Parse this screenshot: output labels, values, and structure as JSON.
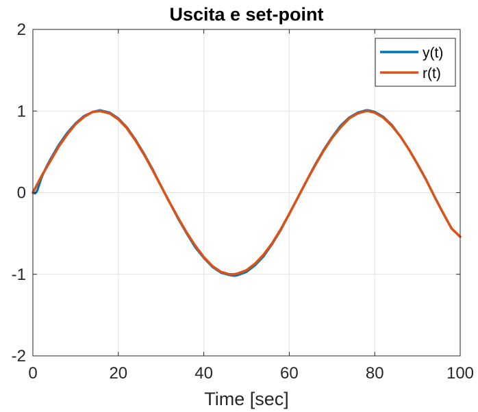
{
  "chart_data": {
    "type": "line",
    "title": "Uscita e set-point",
    "xlabel": "Time [sec]",
    "ylabel": "",
    "xlim": [
      0,
      100
    ],
    "ylim": [
      -2,
      2
    ],
    "xticks": [
      0,
      20,
      40,
      60,
      80,
      100
    ],
    "yticks": [
      -2,
      -1,
      0,
      1,
      2
    ],
    "xtick_labels": [
      "0",
      "20",
      "40",
      "60",
      "80",
      "100"
    ],
    "ytick_labels": [
      "-2",
      "-1",
      "0",
      "1",
      "2"
    ],
    "grid": true,
    "legend_position": "top-right",
    "series": [
      {
        "name": "y(t)",
        "color": "#0072bd",
        "x": [
          0,
          0.5,
          1,
          1.5,
          2,
          3,
          4,
          6,
          8,
          10,
          12,
          14,
          15.7,
          18,
          20,
          22,
          24,
          26,
          28,
          30,
          32,
          34,
          36,
          38,
          40,
          42,
          44,
          46,
          47.1,
          48,
          50,
          52,
          54,
          56,
          58,
          60,
          62,
          64,
          66,
          68,
          70,
          72,
          74,
          76,
          78,
          78.5,
          80,
          82,
          84,
          86,
          88,
          90,
          92,
          94,
          96,
          98,
          100
        ],
        "values": [
          0,
          -0.01,
          0.02,
          0.1,
          0.18,
          0.3,
          0.4,
          0.58,
          0.73,
          0.85,
          0.94,
          0.99,
          1.01,
          0.98,
          0.91,
          0.8,
          0.65,
          0.48,
          0.29,
          0.08,
          -0.12,
          -0.32,
          -0.5,
          -0.67,
          -0.8,
          -0.91,
          -0.98,
          -1.01,
          -1.02,
          -1.01,
          -0.97,
          -0.89,
          -0.78,
          -0.63,
          -0.46,
          -0.26,
          -0.06,
          0.14,
          0.34,
          0.52,
          0.68,
          0.82,
          0.92,
          0.98,
          1.01,
          1.01,
          0.99,
          0.93,
          0.83,
          0.69,
          0.53,
          0.35,
          0.16,
          -0.05,
          -0.25,
          -0.44,
          -0.54
        ]
      },
      {
        "name": "r(t)",
        "color": "#d95319",
        "x": [
          0,
          1,
          2,
          3,
          4,
          6,
          8,
          10,
          12,
          14,
          15.7,
          18,
          20,
          22,
          24,
          26,
          28,
          30,
          32,
          34,
          36,
          38,
          40,
          42,
          44,
          46,
          47.1,
          48,
          50,
          52,
          54,
          56,
          58,
          60,
          62,
          64,
          66,
          68,
          70,
          72,
          74,
          76,
          78,
          78.5,
          80,
          82,
          84,
          86,
          88,
          90,
          92,
          94,
          96,
          98,
          100
        ],
        "values": [
          0,
          0.1,
          0.2,
          0.29,
          0.38,
          0.56,
          0.71,
          0.84,
          0.93,
          0.99,
          1.0,
          0.97,
          0.9,
          0.79,
          0.64,
          0.47,
          0.28,
          0.08,
          -0.12,
          -0.31,
          -0.49,
          -0.65,
          -0.79,
          -0.9,
          -0.97,
          -1.0,
          -1.0,
          -0.99,
          -0.95,
          -0.87,
          -0.76,
          -0.62,
          -0.45,
          -0.26,
          -0.06,
          0.14,
          0.33,
          0.51,
          0.67,
          0.8,
          0.91,
          0.97,
          1.0,
          1.0,
          0.98,
          0.92,
          0.82,
          0.69,
          0.53,
          0.35,
          0.16,
          -0.05,
          -0.25,
          -0.44,
          -0.54
        ]
      }
    ]
  }
}
